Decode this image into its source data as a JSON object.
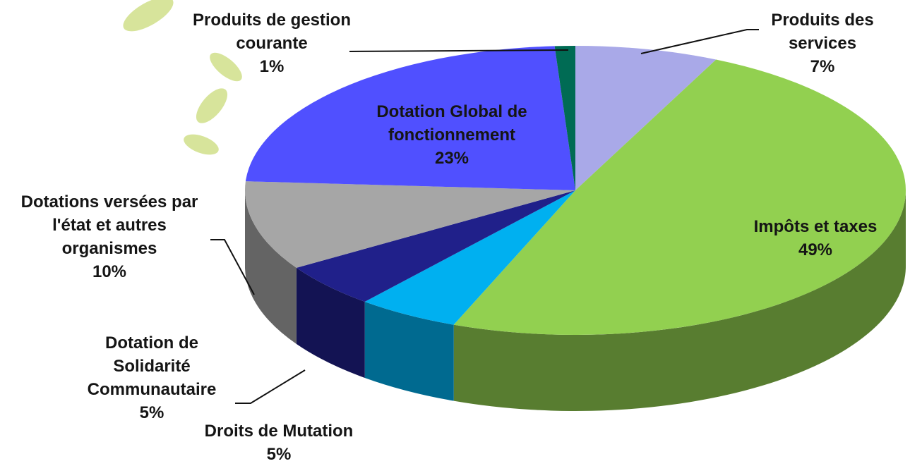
{
  "chart_data": {
    "type": "pie3d",
    "categories": [
      "Produits des services",
      "Impôts et taxes",
      "Droits de Mutation",
      "Dotation de Solidarité Communautaire",
      "Dotations versées par l'état et autres organismes",
      "Dotation Global de fonctionnement",
      "Produits de gestion courante"
    ],
    "values": [
      7,
      49,
      5,
      5,
      10,
      23,
      1
    ],
    "value_labels": [
      "7%",
      "49%",
      "5%",
      "5%",
      "10%",
      "23%",
      "1%"
    ],
    "colors": [
      "#a9a9e8",
      "#92d050",
      "#00b0f0",
      "#20208a",
      "#a6a6a6",
      "#5050ff",
      "#006b54"
    ]
  }
}
